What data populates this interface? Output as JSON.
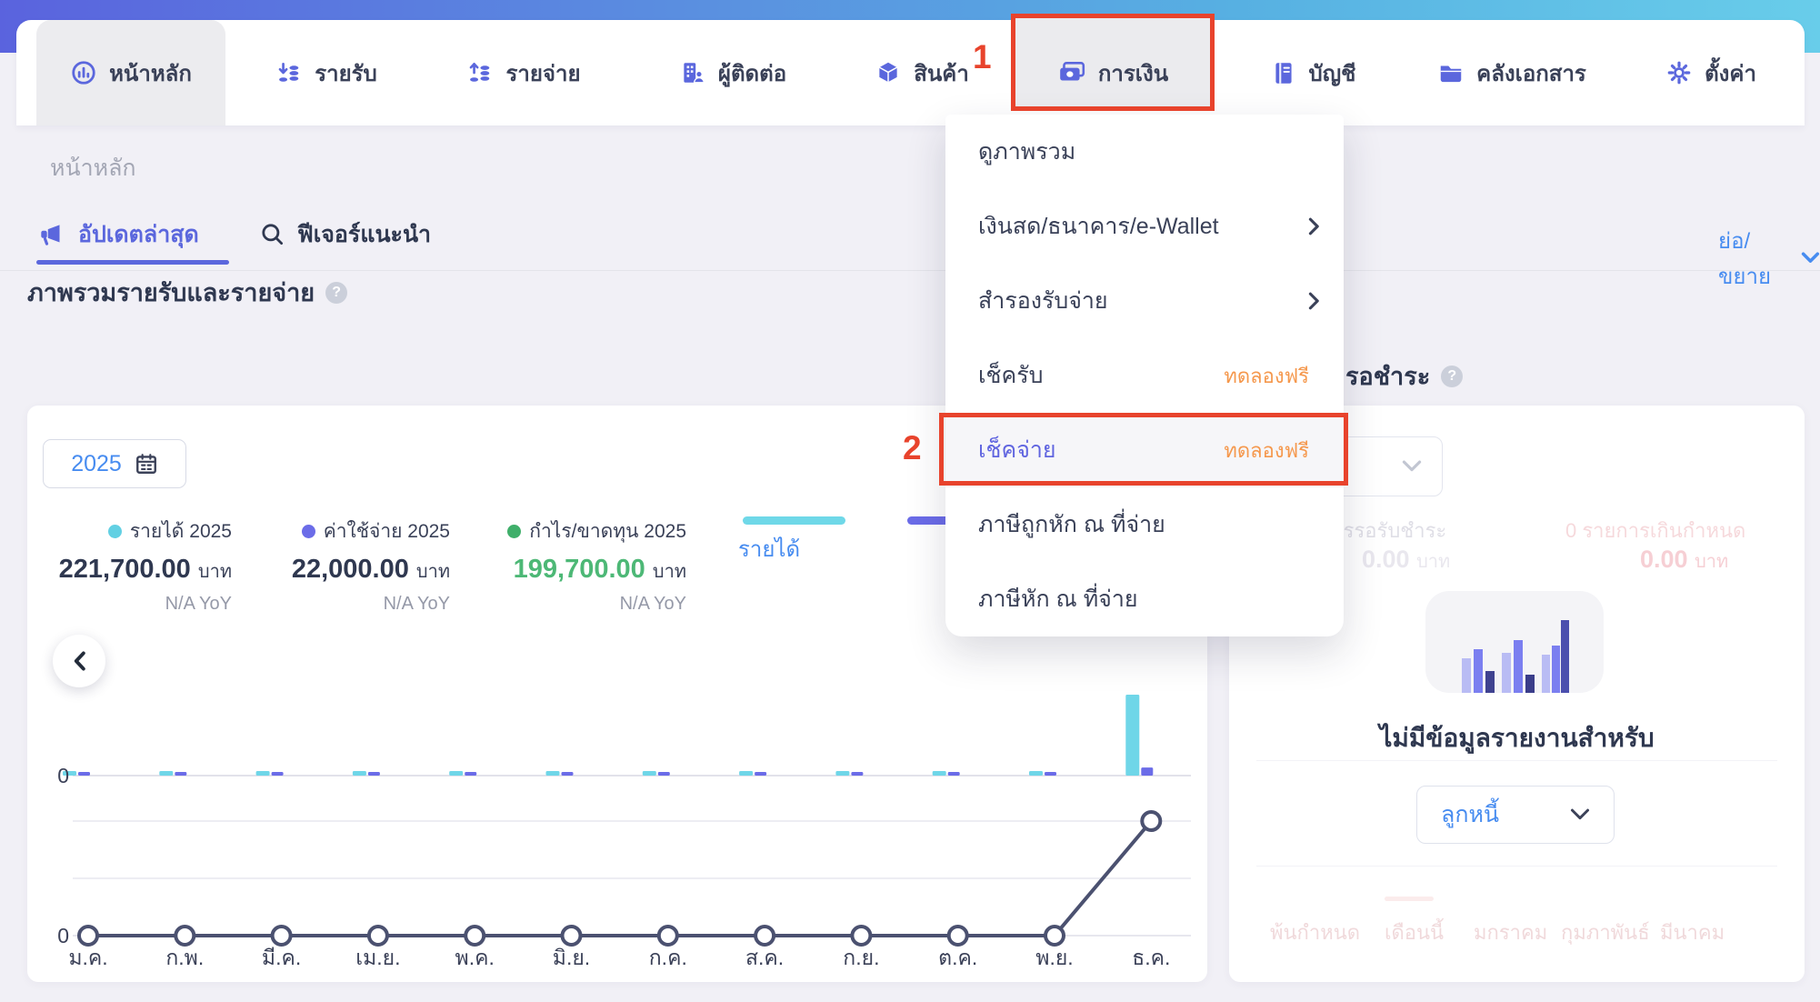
{
  "topbar": {
    "gradient_left": "#5a63de",
    "gradient_mid": "#57b0e2",
    "gradient_right": "#68cdea"
  },
  "nav": {
    "items": [
      {
        "label": "หน้าหลัก",
        "icon": "dashboard-icon",
        "active": true
      },
      {
        "label": "รายรับ",
        "icon": "income-coins-icon"
      },
      {
        "label": "รายจ่าย",
        "icon": "expense-coins-icon"
      },
      {
        "label": "ผู้ติดต่อ",
        "icon": "contacts-icon"
      },
      {
        "label": "สินค้า",
        "icon": "box-icon"
      },
      {
        "label": "การเงิน",
        "icon": "banknote-icon",
        "highlighted": true
      },
      {
        "label": "บัญชี",
        "icon": "ledger-icon"
      },
      {
        "label": "คลังเอกสาร",
        "icon": "folder-icon"
      },
      {
        "label": "ตั้งค่า",
        "icon": "gear-icon"
      }
    ]
  },
  "annotations": {
    "step1": "1",
    "step2": "2",
    "color": "#e8432c"
  },
  "finance_menu": {
    "items": [
      {
        "label": "ดูภาพรวม"
      },
      {
        "label": "เงินสด/ธนาคาร/e-Wallet",
        "chevron": true
      },
      {
        "label": "สำรองรับจ่าย",
        "chevron": true
      },
      {
        "label": "เช็ครับ",
        "badge": "ทดลองฟรี"
      },
      {
        "label": "เช็คจ่าย",
        "badge": "ทดลองฟรี",
        "highlighted": true
      },
      {
        "label": "ภาษีถูกหัก ณ ที่จ่าย"
      },
      {
        "label": "ภาษีหัก ณ ที่จ่าย"
      }
    ],
    "badge_color": "#f5984d"
  },
  "breadcrumb": "หน้าหลัก",
  "tabs": {
    "updates": "อัปเดตล่าสุด",
    "features": "ฟีเจอร์แนะนำ",
    "collapse": "ย่อ/ขยาย"
  },
  "overview": {
    "title": "ภาพรวมรายรับและรายจ่าย",
    "year": "2025",
    "stats": [
      {
        "label": "รายได้ 2025",
        "dot": "#62d0e3",
        "value": "221,700.00",
        "unit": "บาท",
        "yoy": "N/A YoY",
        "value_color": "#2f3850"
      },
      {
        "label": "ค่าใช้จ่าย 2025",
        "dot": "#6b6ce8",
        "value": "22,000.00",
        "unit": "บาท",
        "yoy": "N/A YoY",
        "value_color": "#2f3850"
      },
      {
        "label": "กำไร/ขาดทุน 2025",
        "dot": "#3faf6a",
        "value": "199,700.00",
        "unit": "บาท",
        "yoy": "N/A YoY",
        "value_color": "#4db876"
      }
    ],
    "legend_toggle": {
      "label": "รายได้",
      "income_color": "#6fd8e8",
      "expense_color": "#6b6ce8"
    }
  },
  "chart_data": [
    {
      "type": "bar",
      "title": "ภาพรวมรายรับและรายจ่าย",
      "categories": [
        "ม.ค.",
        "ก.พ.",
        "มี.ค.",
        "เม.ย.",
        "พ.ค.",
        "มิ.ย.",
        "ก.ค.",
        "ส.ค.",
        "ก.ย.",
        "ต.ค.",
        "พ.ย.",
        "ธ.ค."
      ],
      "series": [
        {
          "name": "รายได้ 2025",
          "color": "#6fd6e8",
          "values": [
            2000,
            2000,
            2000,
            2000,
            2000,
            2000,
            2000,
            2000,
            2000,
            2000,
            2000,
            199700
          ]
        },
        {
          "name": "ค่าใช้จ่าย 2025",
          "color": "#6b6ce8",
          "values": [
            180,
            180,
            180,
            180,
            180,
            180,
            180,
            180,
            180,
            180,
            180,
            20020
          ]
        }
      ],
      "ylim": [
        0,
        210000
      ],
      "ytick_label": "0",
      "grid": false,
      "note": "monthly values estimated from bar heights; annual totals 221,700.00 / 22,000.00 shown on card"
    },
    {
      "type": "line",
      "categories": [
        "ม.ค.",
        "ก.พ.",
        "มี.ค.",
        "เม.ย.",
        "พ.ค.",
        "มิ.ย.",
        "ก.ค.",
        "ส.ค.",
        "ก.ย.",
        "ต.ค.",
        "พ.ย.",
        "ธ.ค."
      ],
      "series": [
        {
          "name": "กำไร/ขาดทุน 2025",
          "color": "#4b5170",
          "values": [
            0,
            0,
            0,
            0,
            0,
            0,
            0,
            0,
            0,
            0,
            0,
            180000
          ]
        }
      ],
      "ylim": [
        0,
        360000
      ],
      "gridline_values": [
        90000,
        180000
      ],
      "ytick_label": "0",
      "note": "line flat at 0 through พ.ย., rises at ธ.ค.; values estimated from gridlines"
    }
  ],
  "pending_panel": {
    "title_visible": "รอชำระ",
    "stats": [
      {
        "label": "การรอรับชำระ",
        "value": "0.00",
        "unit": "บาท",
        "tone": "gray"
      },
      {
        "label": "0 รายการเกินกำหนด",
        "value": "0.00",
        "unit": "บาท",
        "tone": "pink"
      }
    ],
    "empty_title": "ไม่มีข้อมูลรายงานสำหรับ",
    "selector_value": "ลูกหนี้",
    "axis_labels": [
      "พ้นกำหนด",
      "เดือนนี้",
      "มกราคม",
      "กุมภาพันธ์",
      "มีนาคม"
    ]
  }
}
